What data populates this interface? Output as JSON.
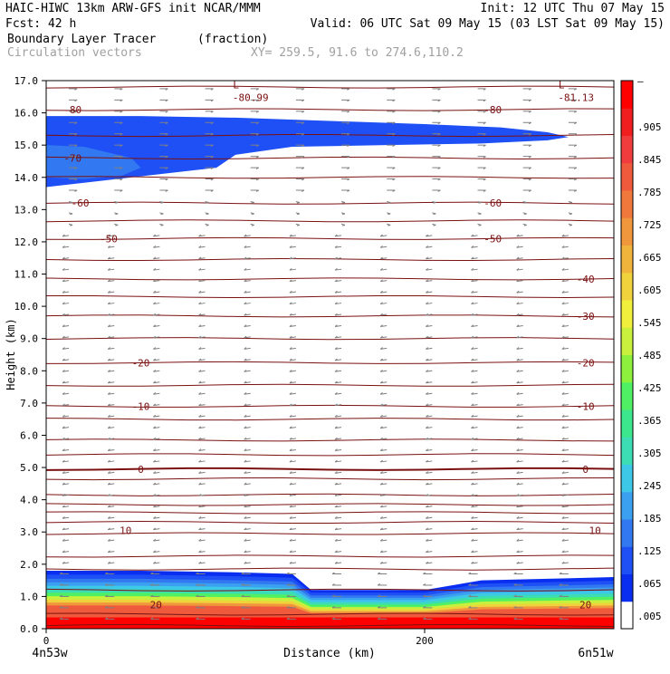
{
  "header": {
    "line1_left": "HAIC-HIWC 13km ARW-GFS init    NCAR/MMM",
    "line1_right": "Init: 12 UTC Thu 07 May 15",
    "line2_left": "Fcst:   42 h",
    "line2_right": "Valid: 06 UTC Sat 09 May 15 (03 LST Sat 09 May 15)",
    "line3_field": "Boundary Layer Tracer",
    "line3_units": "(fraction)",
    "line4_field": "Circulation vectors",
    "line4_xy": "XY= 259.5, 91.6 to 274.6,110.2"
  },
  "colors": {
    "contour": "#7a1010",
    "vector": "#808080",
    "header_gray": "#a0a0a0",
    "scale": [
      "#ffffff",
      "#0a2ef0",
      "#1e50f5",
      "#3278f0",
      "#3ca0f0",
      "#3cc8e6",
      "#3cdcb4",
      "#3ce68c",
      "#50f064",
      "#8cf03c",
      "#c8f03c",
      "#f0f03c",
      "#f0d23c",
      "#f0b43c",
      "#f0963c",
      "#f0783c",
      "#f05a3c",
      "#f03c3c",
      "#f01e1e",
      "#ff0000"
    ]
  },
  "chart_data": {
    "type": "heatmap",
    "subtype": "vertical cross-section: filled tracer shading + temperature contours + circulation vectors",
    "xlabel": "Distance (km)",
    "ylabel": "Height (km)",
    "xlim": [
      0,
      300
    ],
    "ylim": [
      0.0,
      17.0
    ],
    "x_ticks": [
      0,
      200
    ],
    "x_tick_labels": [
      "0",
      "200"
    ],
    "x_end_labels": {
      "left": "4n53w",
      "right": "6n51w"
    },
    "y_ticks": [
      0.0,
      1.0,
      2.0,
      3.0,
      4.0,
      5.0,
      6.0,
      7.0,
      8.0,
      9.0,
      10.0,
      11.0,
      12.0,
      13.0,
      14.0,
      15.0,
      16.0,
      17.0
    ],
    "y_tick_labels": [
      "0.0",
      "1.0",
      "2.0",
      "3.0",
      "4.0",
      "5.0",
      "6.0",
      "7.0",
      "8.0",
      "9.0",
      "10.0",
      "11.0",
      "12.0",
      "13.0",
      "14.0",
      "15.0",
      "16.0",
      "17.0"
    ],
    "colorbar": {
      "labels": [
        ".005",
        ".065",
        ".125",
        ".185",
        ".245",
        ".305",
        ".365",
        ".425",
        ".485",
        ".545",
        ".605",
        ".665",
        ".725",
        ".785",
        ".845",
        ".905",
        "–"
      ]
    },
    "contour_lines_height_km": [
      0.1,
      0.45,
      1.2,
      1.85,
      2.25,
      2.95,
      3.3,
      3.6,
      3.85,
      4.15,
      4.65,
      4.95,
      5.4,
      5.85,
      6.5,
      6.9,
      7.55,
      8.25,
      9.0,
      9.7,
      10.3,
      10.85,
      11.45,
      12.1,
      12.65,
      13.2,
      14.0,
      14.6,
      15.3,
      16.1,
      16.8
    ],
    "contour_labels": [
      {
        "text": "-80",
        "x": 14,
        "y": 16.1
      },
      {
        "text": "-80",
        "x": 236,
        "y": 16.1
      },
      {
        "text": "-70",
        "x": 14,
        "y": 14.6
      },
      {
        "text": "-60",
        "x": 18,
        "y": 13.2
      },
      {
        "text": "-60",
        "x": 236,
        "y": 13.2
      },
      {
        "text": "-50",
        "x": 33,
        "y": 12.1
      },
      {
        "text": "-50",
        "x": 236,
        "y": 12.1
      },
      {
        "text": "-40",
        "x": 285,
        "y": 10.85
      },
      {
        "text": "-30",
        "x": 285,
        "y": 9.7
      },
      {
        "text": "-20",
        "x": 50,
        "y": 8.25
      },
      {
        "text": "-20",
        "x": 285,
        "y": 8.25
      },
      {
        "text": "-10",
        "x": 50,
        "y": 6.9
      },
      {
        "text": "-10",
        "x": 285,
        "y": 6.9
      },
      {
        "text": "0",
        "x": 50,
        "y": 4.95
      },
      {
        "text": "0",
        "x": 285,
        "y": 4.95
      },
      {
        "text": "10",
        "x": 42,
        "y": 3.05
      },
      {
        "text": "10",
        "x": 290,
        "y": 3.05
      },
      {
        "text": "20",
        "x": 58,
        "y": 0.75
      },
      {
        "text": "20",
        "x": 285,
        "y": 0.75
      }
    ],
    "lows": [
      {
        "label": "L",
        "value": "-80.99",
        "x": 108,
        "y": 16.7
      },
      {
        "label": "L",
        "value": "-81.13",
        "x": 280,
        "y": 16.7
      }
    ],
    "upper_tracer_layer": {
      "top_profile": [
        [
          0,
          15.9
        ],
        [
          50,
          15.9
        ],
        [
          100,
          15.85
        ],
        [
          150,
          15.75
        ],
        [
          200,
          15.65
        ],
        [
          240,
          15.55
        ],
        [
          265,
          15.4
        ],
        [
          276,
          15.25
        ]
      ],
      "bottom_profile": [
        [
          0,
          13.7
        ],
        [
          30,
          13.9
        ],
        [
          60,
          14.1
        ],
        [
          90,
          14.3
        ],
        [
          100,
          14.7
        ],
        [
          130,
          14.95
        ],
        [
          180,
          15.0
        ],
        [
          230,
          15.05
        ],
        [
          265,
          15.15
        ],
        [
          276,
          15.25
        ]
      ],
      "inner_lighter_core": [
        [
          0,
          15.0
        ],
        [
          20,
          14.95
        ],
        [
          45,
          14.6
        ],
        [
          50,
          14.3
        ],
        [
          40,
          14.05
        ],
        [
          20,
          13.95
        ],
        [
          0,
          14.0
        ]
      ]
    },
    "boundary_layer_top_km": [
      [
        0,
        1.8
      ],
      [
        50,
        1.8
      ],
      [
        100,
        1.75
      ],
      [
        130,
        1.7
      ],
      [
        140,
        1.2
      ],
      [
        200,
        1.2
      ],
      [
        230,
        1.5
      ],
      [
        300,
        1.6
      ]
    ]
  }
}
